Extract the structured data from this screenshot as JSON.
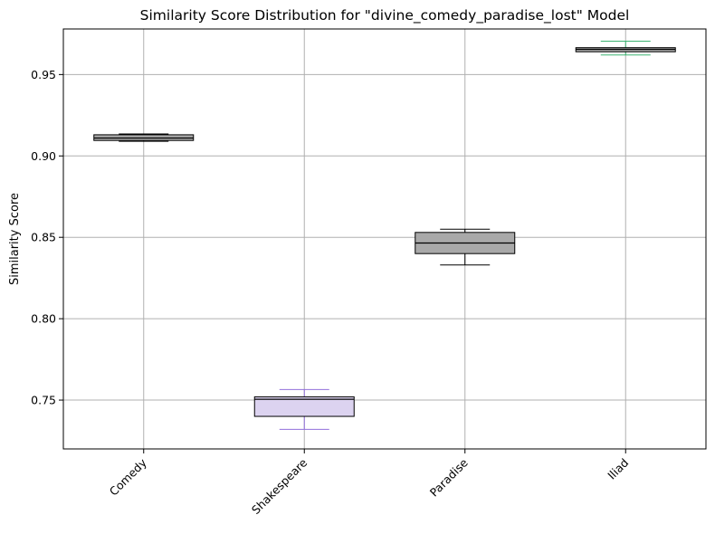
{
  "chart_data": {
    "type": "box",
    "title": "Similarity Score Distribution for \"divine_comedy_paradise_lost\" Model",
    "xlabel": "",
    "ylabel": "Similarity Score",
    "ylim": [
      0.72,
      0.978
    ],
    "yticks": [
      "0.75",
      "0.80",
      "0.85",
      "0.90",
      "0.95"
    ],
    "grid": true,
    "categories": [
      "Comedy",
      "Shakespeare",
      "Paradise",
      "Iliad"
    ],
    "boxes": [
      {
        "category": "Comedy",
        "whisker_low": 0.909,
        "q1": 0.9095,
        "median": 0.911,
        "q3": 0.913,
        "whisker_high": 0.9135,
        "fill": "#a9a9a9",
        "whisker_color": "#000000"
      },
      {
        "category": "Shakespeare",
        "whisker_low": 0.732,
        "q1": 0.74,
        "median": 0.7505,
        "q3": 0.752,
        "whisker_high": 0.7565,
        "fill": "#dcd3f0",
        "whisker_color": "#9370db"
      },
      {
        "category": "Paradise",
        "whisker_low": 0.833,
        "q1": 0.84,
        "median": 0.8465,
        "q3": 0.853,
        "whisker_high": 0.855,
        "fill": "#a9a9a9",
        "whisker_color": "#000000"
      },
      {
        "category": "Iliad",
        "whisker_low": 0.962,
        "q1": 0.964,
        "median": 0.9655,
        "q3": 0.9665,
        "whisker_high": 0.9705,
        "fill": "#a9a9a9",
        "whisker_color": "#3cb371"
      }
    ],
    "colors": {
      "box_edge": "#000000",
      "median": "#000000",
      "grid": "#b0b0b0"
    }
  }
}
